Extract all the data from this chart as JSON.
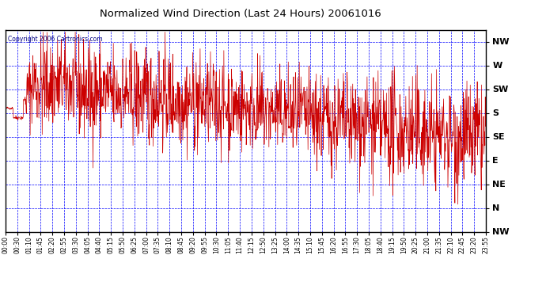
{
  "title": "Normalized Wind Direction (Last 24 Hours) 20061016",
  "copyright": "Copyright 2006 Cartronics.com",
  "background_color": "#ffffff",
  "plot_bg_color": "#ffffff",
  "grid_color": "#0000ff",
  "line_color": "#cc0000",
  "title_color": "#000000",
  "border_color": "#000000",
  "ytick_labels": [
    "NW",
    "W",
    "SW",
    "S",
    "SE",
    "E",
    "NE",
    "N",
    "NW"
  ],
  "ytick_values": [
    8,
    7,
    6,
    5,
    4,
    3,
    2,
    1,
    0
  ],
  "ylim": [
    0,
    8.5
  ],
  "xtick_labels": [
    "00:00",
    "00:30",
    "01:10",
    "01:45",
    "02:20",
    "02:55",
    "03:30",
    "04:05",
    "04:40",
    "05:15",
    "05:50",
    "06:25",
    "07:00",
    "07:35",
    "08:10",
    "08:45",
    "09:20",
    "09:55",
    "10:30",
    "11:05",
    "11:40",
    "12:15",
    "12:50",
    "13:25",
    "14:00",
    "14:35",
    "15:10",
    "15:45",
    "16:20",
    "16:55",
    "17:30",
    "18:05",
    "18:40",
    "19:15",
    "19:50",
    "20:25",
    "21:00",
    "21:35",
    "22:10",
    "22:45",
    "23:20",
    "23:55"
  ],
  "seed": 42,
  "n_points": 1440
}
